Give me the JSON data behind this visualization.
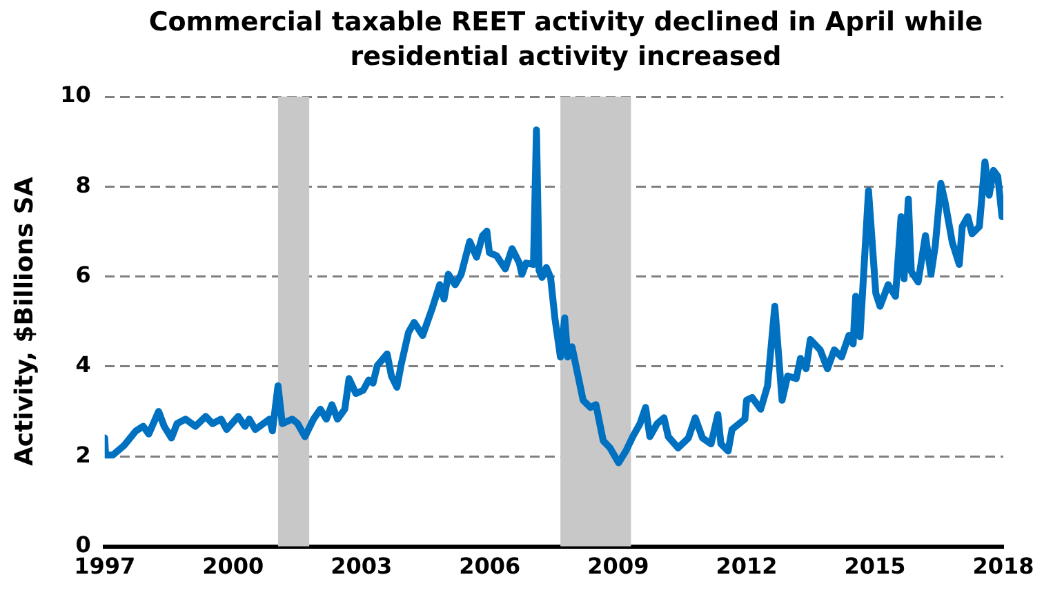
{
  "chart_data": {
    "type": "line",
    "title": "Commercial taxable REET activity declined in April while residential activity increased",
    "ylabel": "Activity, $Billions SA",
    "xlim": [
      1997,
      2018
    ],
    "xticks": [
      1997,
      2000,
      2003,
      2006,
      2009,
      2012,
      2015,
      2018
    ],
    "ylim": [
      0,
      10
    ],
    "yticks": [
      0,
      2,
      4,
      6,
      8,
      10
    ],
    "grid": "y",
    "legend": false,
    "marker": "none",
    "line_style": "solid",
    "bands": [
      {
        "axis": "x",
        "from": 2001.05,
        "to": 2001.78,
        "color": "#c8c8c8"
      },
      {
        "axis": "x",
        "from": 2007.65,
        "to": 2009.3,
        "color": "#c8c8c8"
      }
    ],
    "series": [
      {
        "color": "#0070c0",
        "x": [
          1997.0,
          1997.02,
          1997.19,
          1997.46,
          1997.73,
          1997.9,
          1998.03,
          1998.26,
          1998.39,
          1998.56,
          1998.69,
          1998.89,
          1999.12,
          1999.36,
          1999.52,
          1999.72,
          1999.85,
          2000.12,
          2000.28,
          2000.38,
          2000.52,
          2000.85,
          2000.92,
          2001.05,
          2001.15,
          2001.38,
          2001.51,
          2001.68,
          2001.88,
          2002.04,
          2002.18,
          2002.31,
          2002.44,
          2002.61,
          2002.71,
          2002.87,
          2003.04,
          2003.17,
          2003.27,
          2003.37,
          2003.6,
          2003.7,
          2003.83,
          2003.93,
          2004.1,
          2004.23,
          2004.43,
          2004.66,
          2004.83,
          2004.93,
          2005.03,
          2005.19,
          2005.33,
          2005.53,
          2005.69,
          2005.83,
          2005.93,
          2005.99,
          2006.16,
          2006.36,
          2006.52,
          2006.69,
          2006.75,
          2006.85,
          2007.02,
          2007.09,
          2007.15,
          2007.22,
          2007.32,
          2007.42,
          2007.52,
          2007.65,
          2007.75,
          2007.82,
          2007.92,
          2008.18,
          2008.35,
          2008.48,
          2008.65,
          2008.81,
          2009.01,
          2009.18,
          2009.34,
          2009.51,
          2009.64,
          2009.74,
          2009.91,
          2010.07,
          2010.17,
          2010.4,
          2010.64,
          2010.8,
          2010.97,
          2011.17,
          2011.33,
          2011.4,
          2011.57,
          2011.66,
          2011.96,
          2012.0,
          2012.13,
          2012.33,
          2012.49,
          2012.66,
          2012.83,
          2012.96,
          2013.16,
          2013.26,
          2013.39,
          2013.49,
          2013.72,
          2013.89,
          2014.05,
          2014.22,
          2014.39,
          2014.49,
          2014.55,
          2014.65,
          2014.85,
          2015.02,
          2015.12,
          2015.31,
          2015.48,
          2015.61,
          2015.68,
          2015.78,
          2015.85,
          2016.01,
          2016.18,
          2016.31,
          2016.41,
          2016.54,
          2016.64,
          2016.81,
          2016.97,
          2017.04,
          2017.17,
          2017.27,
          2017.44,
          2017.57,
          2017.67,
          2017.77,
          2017.87,
          2017.97
        ],
        "values": [
          2.41,
          2.03,
          2.03,
          2.25,
          2.57,
          2.67,
          2.5,
          3.0,
          2.67,
          2.41,
          2.73,
          2.83,
          2.67,
          2.89,
          2.73,
          2.83,
          2.6,
          2.89,
          2.67,
          2.83,
          2.6,
          2.83,
          2.57,
          3.57,
          2.73,
          2.83,
          2.73,
          2.44,
          2.83,
          3.05,
          2.83,
          3.15,
          2.83,
          3.05,
          3.73,
          3.4,
          3.47,
          3.7,
          3.63,
          4.02,
          4.28,
          3.79,
          3.54,
          4.05,
          4.76,
          4.98,
          4.69,
          5.31,
          5.82,
          5.5,
          6.05,
          5.82,
          6.05,
          6.78,
          6.43,
          6.91,
          7.01,
          6.53,
          6.46,
          6.17,
          6.62,
          6.3,
          6.05,
          6.3,
          6.27,
          9.26,
          6.14,
          5.98,
          6.2,
          5.98,
          5.08,
          4.21,
          5.08,
          4.21,
          4.44,
          3.25,
          3.09,
          3.15,
          2.35,
          2.19,
          1.86,
          2.12,
          2.44,
          2.73,
          3.09,
          2.44,
          2.73,
          2.86,
          2.44,
          2.19,
          2.41,
          2.86,
          2.41,
          2.28,
          2.93,
          2.28,
          2.12,
          2.6,
          2.83,
          3.25,
          3.31,
          3.05,
          3.57,
          5.34,
          3.25,
          3.79,
          3.73,
          4.18,
          3.95,
          4.6,
          4.37,
          3.95,
          4.37,
          4.21,
          4.69,
          4.5,
          5.56,
          4.66,
          7.91,
          5.63,
          5.34,
          5.82,
          5.56,
          7.33,
          5.95,
          7.72,
          6.11,
          5.88,
          6.91,
          6.05,
          6.69,
          8.07,
          7.65,
          6.75,
          6.27,
          7.11,
          7.33,
          6.95,
          7.11,
          8.55,
          7.81,
          8.36,
          8.23,
          7.33
        ]
      }
    ]
  }
}
